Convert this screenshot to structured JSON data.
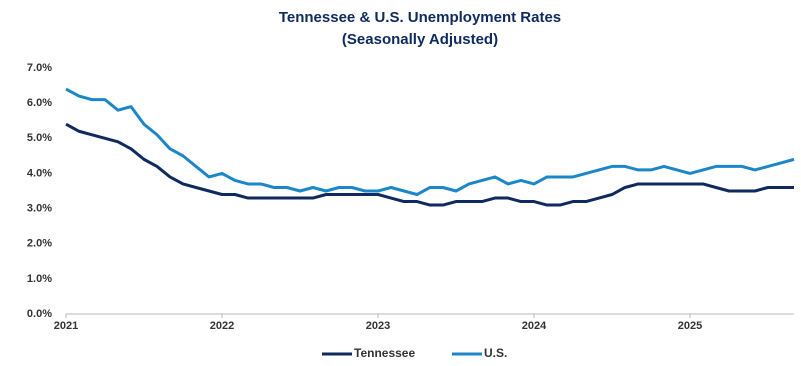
{
  "chart_data": {
    "type": "line",
    "title": "Tennessee & U.S. Unemployment Rates",
    "subtitle": "(Seasonally Adjusted)",
    "categories": [
      "2021",
      null,
      null,
      null,
      null,
      null,
      null,
      null,
      null,
      null,
      null,
      null,
      "2022",
      null,
      null,
      null,
      null,
      null,
      null,
      null,
      null,
      null,
      null,
      null,
      "2023",
      null,
      null,
      null,
      null,
      null,
      null,
      null,
      null,
      null,
      null,
      null,
      "2024",
      null,
      null,
      null,
      null,
      null,
      null,
      null,
      null,
      null,
      null,
      null,
      "2025",
      null,
      null,
      null,
      null,
      null,
      null,
      null,
      null
    ],
    "series": [
      {
        "name": "Tennessee",
        "color": "#0e2a5f",
        "values": [
          5.4,
          5.2,
          5.1,
          5.0,
          4.9,
          4.7,
          4.4,
          4.2,
          3.9,
          3.7,
          3.6,
          3.5,
          3.4,
          3.4,
          3.3,
          3.3,
          3.3,
          3.3,
          3.3,
          3.3,
          3.4,
          3.4,
          3.4,
          3.4,
          3.4,
          3.3,
          3.2,
          3.2,
          3.1,
          3.1,
          3.2,
          3.2,
          3.2,
          3.3,
          3.3,
          3.2,
          3.2,
          3.1,
          3.1,
          3.2,
          3.2,
          3.3,
          3.4,
          3.6,
          3.7,
          3.7,
          3.7,
          3.7,
          3.7,
          3.7,
          3.6,
          3.5,
          3.5,
          3.5,
          3.6,
          3.6,
          3.6
        ]
      },
      {
        "name": "U.S.",
        "color": "#1b87c8",
        "values": [
          6.4,
          6.2,
          6.1,
          6.1,
          5.8,
          5.9,
          5.4,
          5.1,
          4.7,
          4.5,
          4.2,
          3.9,
          4.0,
          3.8,
          3.7,
          3.7,
          3.6,
          3.6,
          3.5,
          3.6,
          3.5,
          3.6,
          3.6,
          3.5,
          3.5,
          3.6,
          3.5,
          3.4,
          3.6,
          3.6,
          3.5,
          3.7,
          3.8,
          3.9,
          3.7,
          3.8,
          3.7,
          3.9,
          3.9,
          3.9,
          4.0,
          4.1,
          4.2,
          4.2,
          4.1,
          4.1,
          4.2,
          4.1,
          4.0,
          4.1,
          4.2,
          4.2,
          4.2,
          4.1,
          4.2,
          4.3,
          4.4
        ]
      }
    ],
    "ylim": [
      0,
      7
    ],
    "yticks": [
      {
        "value": 0,
        "label": "0.0%"
      },
      {
        "value": 1,
        "label": "1.0%"
      },
      {
        "value": 2,
        "label": "2.0%"
      },
      {
        "value": 3,
        "label": "3.0%"
      },
      {
        "value": 4,
        "label": "4.0%"
      },
      {
        "value": 5,
        "label": "5.0%"
      },
      {
        "value": 6,
        "label": "6.0%"
      },
      {
        "value": 7,
        "label": "7.0%"
      }
    ],
    "grid": false,
    "legend": "bottom"
  }
}
